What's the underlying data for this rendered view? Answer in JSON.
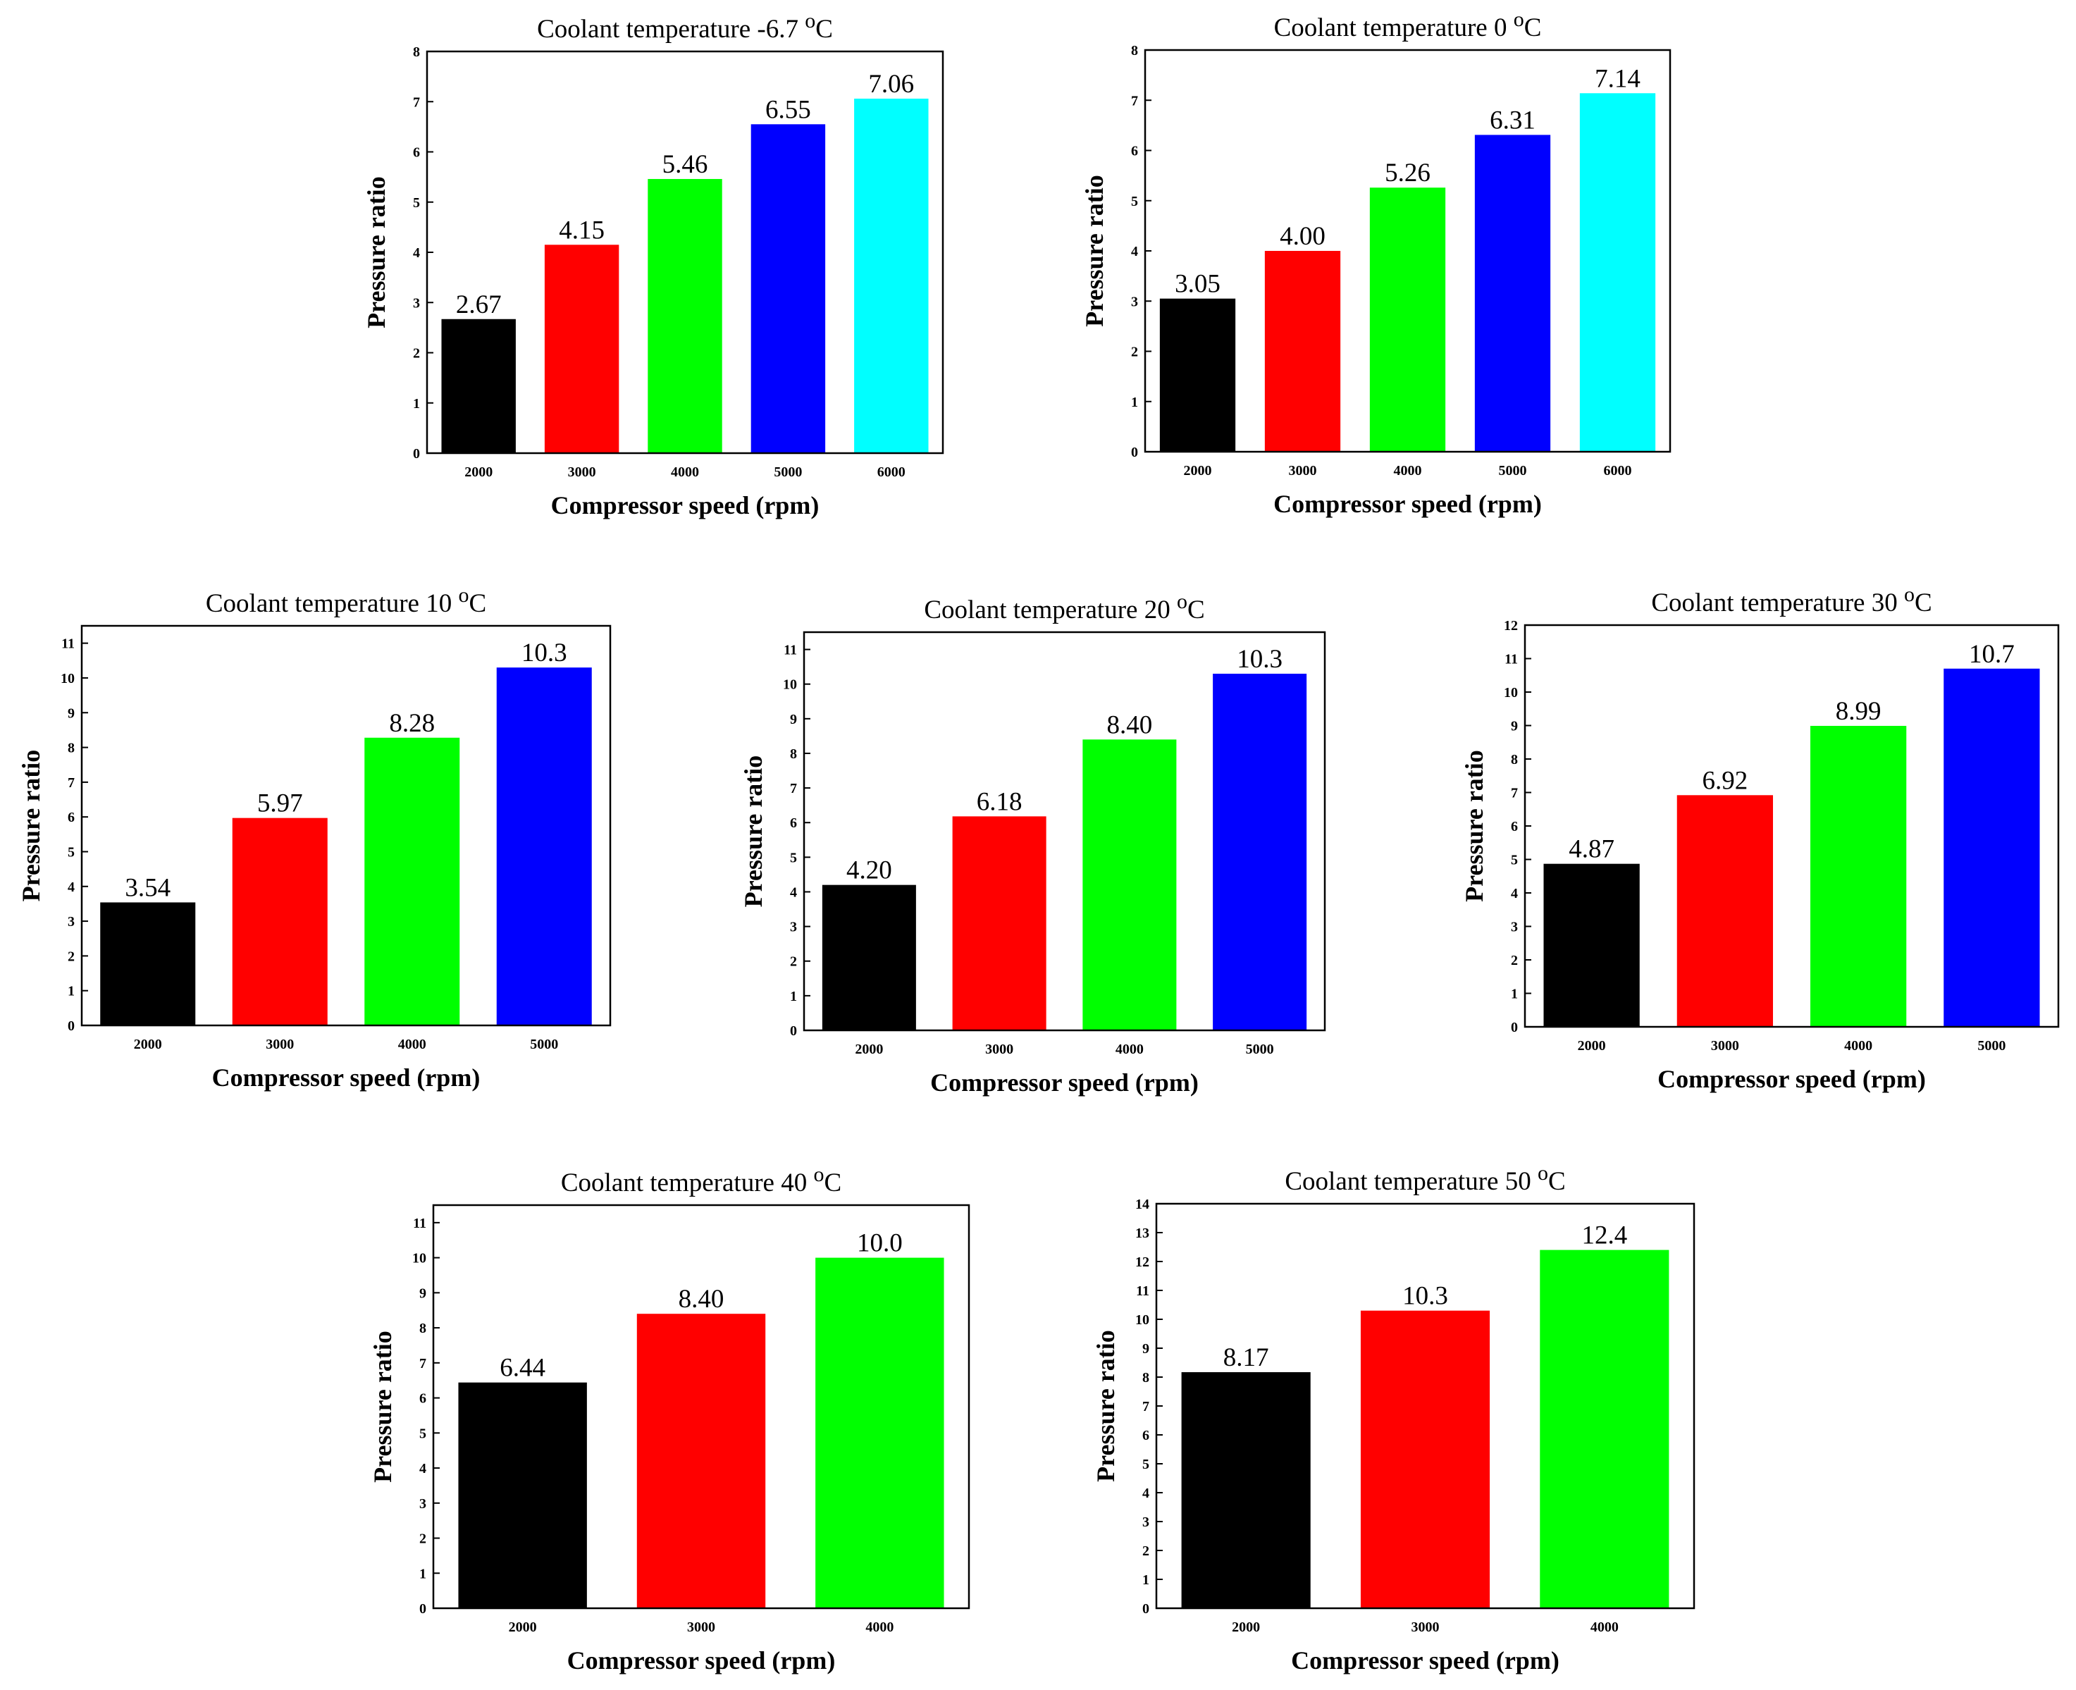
{
  "chart_data": [
    {
      "type": "bar",
      "title": "Coolant temperature -6.7",
      "title_sup": "o",
      "title_unit": "C",
      "xlabel": "Compressor speed (rpm)",
      "ylabel": "Pressure ratio",
      "categories": [
        "2000",
        "3000",
        "4000",
        "5000",
        "6000"
      ],
      "values": [
        2.67,
        4.15,
        5.46,
        6.55,
        7.06
      ],
      "value_labels": [
        "2.67",
        "4.15",
        "5.46",
        "6.55",
        "7.06"
      ],
      "colors": [
        "#000000",
        "#ff0000",
        "#00ff00",
        "#0000ff",
        "#00ffff"
      ],
      "ylim": [
        0,
        8
      ],
      "yticks": [
        0,
        1,
        2,
        3,
        4,
        5,
        6,
        7,
        8
      ],
      "grid": false
    },
    {
      "type": "bar",
      "title": "Coolant temperature 0",
      "title_sup": "o",
      "title_unit": "C",
      "xlabel": "Compressor speed (rpm)",
      "ylabel": "Pressure ratio",
      "categories": [
        "2000",
        "3000",
        "4000",
        "5000",
        "6000"
      ],
      "values": [
        3.05,
        4.0,
        5.26,
        6.31,
        7.14
      ],
      "value_labels": [
        "3.05",
        "4.00",
        "5.26",
        "6.31",
        "7.14"
      ],
      "colors": [
        "#000000",
        "#ff0000",
        "#00ff00",
        "#0000ff",
        "#00ffff"
      ],
      "ylim": [
        0,
        8
      ],
      "yticks": [
        0,
        1,
        2,
        3,
        4,
        5,
        6,
        7,
        8
      ],
      "grid": false
    },
    {
      "type": "bar",
      "title": "Coolant temperature 10",
      "title_sup": "o",
      "title_unit": "C",
      "xlabel": "Compressor speed (rpm)",
      "ylabel": "Pressure ratio",
      "categories": [
        "2000",
        "3000",
        "4000",
        "5000"
      ],
      "values": [
        3.54,
        5.97,
        8.28,
        10.3
      ],
      "value_labels": [
        "3.54",
        "5.97",
        "8.28",
        "10.3"
      ],
      "colors": [
        "#000000",
        "#ff0000",
        "#00ff00",
        "#0000ff"
      ],
      "ylim": [
        0,
        11.5
      ],
      "yticks": [
        0,
        1,
        2,
        3,
        4,
        5,
        6,
        7,
        8,
        9,
        10,
        11
      ],
      "grid": false
    },
    {
      "type": "bar",
      "title": "Coolant temperature 20",
      "title_sup": "o",
      "title_unit": "C",
      "xlabel": "Compressor speed (rpm)",
      "ylabel": "Pressure ratio",
      "categories": [
        "2000",
        "3000",
        "4000",
        "5000"
      ],
      "values": [
        4.2,
        6.18,
        8.4,
        10.3
      ],
      "value_labels": [
        "4.20",
        "6.18",
        "8.40",
        "10.3"
      ],
      "colors": [
        "#000000",
        "#ff0000",
        "#00ff00",
        "#0000ff"
      ],
      "ylim": [
        0,
        11.5
      ],
      "yticks": [
        0,
        1,
        2,
        3,
        4,
        5,
        6,
        7,
        8,
        9,
        10,
        11
      ],
      "grid": false
    },
    {
      "type": "bar",
      "title": "Coolant temperature 30",
      "title_sup": "o",
      "title_unit": "C",
      "xlabel": "Compressor speed (rpm)",
      "ylabel": "Pressure ratio",
      "categories": [
        "2000",
        "3000",
        "4000",
        "5000"
      ],
      "values": [
        4.87,
        6.92,
        8.99,
        10.7
      ],
      "value_labels": [
        "4.87",
        "6.92",
        "8.99",
        "10.7"
      ],
      "colors": [
        "#000000",
        "#ff0000",
        "#00ff00",
        "#0000ff"
      ],
      "ylim": [
        0,
        12
      ],
      "yticks": [
        0,
        1,
        2,
        3,
        4,
        5,
        6,
        7,
        8,
        9,
        10,
        11,
        12
      ],
      "grid": false
    },
    {
      "type": "bar",
      "title": "Coolant temperature 40",
      "title_sup": "o",
      "title_unit": "C",
      "xlabel": "Compressor speed (rpm)",
      "ylabel": "Pressure ratio",
      "categories": [
        "2000",
        "3000",
        "4000"
      ],
      "values": [
        6.44,
        8.4,
        10.0
      ],
      "value_labels": [
        "6.44",
        "8.40",
        "10.0"
      ],
      "colors": [
        "#000000",
        "#ff0000",
        "#00ff00"
      ],
      "ylim": [
        0,
        11.5
      ],
      "yticks": [
        0,
        1,
        2,
        3,
        4,
        5,
        6,
        7,
        8,
        9,
        10,
        11
      ],
      "grid": false
    },
    {
      "type": "bar",
      "title": "Coolant temperature 50",
      "title_sup": "o",
      "title_unit": "C",
      "xlabel": "Compressor speed (rpm)",
      "ylabel": "Pressure ratio",
      "categories": [
        "2000",
        "3000",
        "4000"
      ],
      "values": [
        8.17,
        10.3,
        12.4
      ],
      "value_labels": [
        "8.17",
        "10.3",
        "12.4"
      ],
      "colors": [
        "#000000",
        "#ff0000",
        "#00ff00"
      ],
      "ylim": [
        0,
        14
      ],
      "yticks": [
        0,
        1,
        2,
        3,
        4,
        5,
        6,
        7,
        8,
        9,
        10,
        11,
        12,
        13,
        14
      ],
      "grid": false
    }
  ]
}
